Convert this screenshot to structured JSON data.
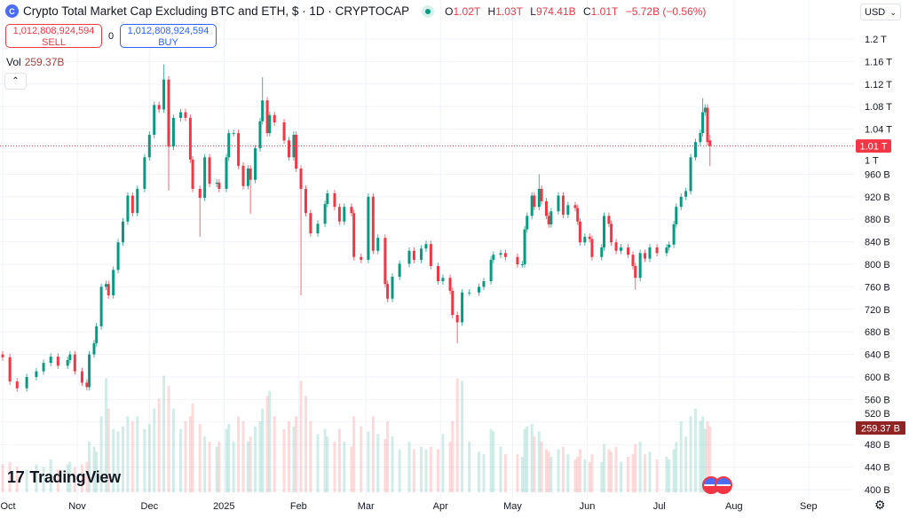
{
  "header": {
    "logo_letter": "C",
    "title": "Crypto Total Market Cap Excluding BTC and ETH, $ · 1D · CRYPTOCAP",
    "ohlc": {
      "o_label": "O",
      "o": "1.02T",
      "h_label": "H",
      "h": "1.03T",
      "l_label": "L",
      "l": "974.41B",
      "c_label": "C",
      "c": "1.01T",
      "change": "−5.72B (−0.56%)"
    },
    "status_color": "#089981"
  },
  "trade": {
    "sell_price": "1,012,808,924,594",
    "sell_label": "SELL",
    "spread": "0",
    "buy_price": "1,012,808,924,594",
    "buy_label": "BUY"
  },
  "volume_legend": {
    "label": "Vol",
    "value": "259.37B"
  },
  "collapse_icon": "chevron-up-icon",
  "currency": {
    "selected": "USD"
  },
  "price_tag": "1.01 T",
  "volume_tag": "259.37 B",
  "branding": "TradingView",
  "chart_data": {
    "type": "candlestick",
    "title": "Crypto Total Market Cap Excluding BTC and ETH",
    "ylabel": "",
    "xlabel": "",
    "ylim": [
      400,
      1200
    ],
    "y_unit": "B USD",
    "grid": true,
    "colors": {
      "up": "#089981",
      "down": "#f23645",
      "last_price": "#f23645",
      "volume_tag": "#8f2424"
    },
    "y_ticks": [
      "1.2 T",
      "1.16 T",
      "1.12 T",
      "1.08 T",
      "1.04 T",
      "1 T",
      "960 B",
      "920 B",
      "880 B",
      "840 B",
      "800 B",
      "760 B",
      "720 B",
      "680 B",
      "640 B",
      "600 B",
      "560 B",
      "520 B",
      "480 B",
      "440 B",
      "400 B"
    ],
    "y_tick_values": [
      1200,
      1160,
      1120,
      1080,
      1040,
      1000,
      960,
      920,
      880,
      840,
      800,
      760,
      720,
      680,
      640,
      600,
      560,
      520,
      480,
      440,
      400
    ],
    "x_ticks": [
      {
        "label": "Oct",
        "date": "2024-10-01"
      },
      {
        "label": "Nov",
        "date": "2024-11-01"
      },
      {
        "label": "Dec",
        "date": "2024-12-01"
      },
      {
        "label": "2025",
        "date": "2025-01-01"
      },
      {
        "label": "Feb",
        "date": "2025-02-01"
      },
      {
        "label": "Mar",
        "date": "2025-03-01"
      },
      {
        "label": "Apr",
        "date": "2025-04-01"
      },
      {
        "label": "May",
        "date": "2025-05-01"
      },
      {
        "label": "Jun",
        "date": "2025-06-01"
      },
      {
        "label": "Jul",
        "date": "2025-07-01"
      },
      {
        "label": "Aug",
        "date": "2025-08-01"
      },
      {
        "label": "Sep",
        "date": "2025-09-01"
      }
    ],
    "last_price": 1010,
    "last_volume": 259.37,
    "first_open": 640,
    "candle_fields": [
      "date",
      "close",
      "volume",
      "high",
      "low"
    ],
    "candles": [
      [
        "2024-10-01",
        635,
        110
      ],
      [
        "2024-10-04",
        592,
        120
      ],
      [
        "2024-10-07",
        580,
        100
      ],
      [
        "2024-10-11",
        600,
        90
      ],
      [
        "2024-10-15",
        610,
        110
      ],
      [
        "2024-10-18",
        625,
        100
      ],
      [
        "2024-10-21",
        636,
        130
      ],
      [
        "2024-10-24",
        620,
        90
      ],
      [
        "2024-10-28",
        630,
        110
      ],
      [
        "2024-10-29",
        640,
        120
      ],
      [
        "2024-10-31",
        610,
        100
      ],
      [
        "2024-11-03",
        590,
        110
      ],
      [
        "2024-11-05",
        582,
        120
      ],
      [
        "2024-11-06",
        640,
        200
      ],
      [
        "2024-11-08",
        660,
        180
      ],
      [
        "2024-11-09",
        690,
        160
      ],
      [
        "2024-11-11",
        760,
        300
      ],
      [
        "2024-11-13",
        765,
        450
      ],
      [
        "2024-11-14",
        745,
        330
      ],
      [
        "2024-11-16",
        790,
        250
      ],
      [
        "2024-11-18",
        839,
        240
      ],
      [
        "2024-11-20",
        876,
        260
      ],
      [
        "2024-11-22",
        922,
        300
      ],
      [
        "2024-11-24",
        891,
        280
      ],
      [
        "2024-11-26",
        934,
        300
      ],
      [
        "2024-11-29",
        990,
        250
      ],
      [
        "2024-12-01",
        1030,
        270
      ],
      [
        "2024-12-03",
        1083,
        330
      ],
      [
        "2024-12-05",
        1075,
        370
      ],
      [
        "2024-12-07",
        1128,
        460,
        1155,
        null
      ],
      [
        "2024-12-09",
        1009,
        420,
        null,
        931
      ],
      [
        "2024-12-11",
        1060,
        330
      ],
      [
        "2024-12-14",
        1070,
        250
      ],
      [
        "2024-12-16",
        1060,
        280
      ],
      [
        "2024-12-18",
        986,
        300
      ],
      [
        "2024-12-19",
        934,
        350
      ],
      [
        "2024-12-22",
        918,
        270,
        null,
        849
      ],
      [
        "2024-12-24",
        990,
        220
      ],
      [
        "2024-12-26",
        943,
        200
      ],
      [
        "2024-12-29",
        945,
        180
      ],
      [
        "2024-12-30",
        934,
        200
      ],
      [
        "2025-01-02",
        990,
        250
      ],
      [
        "2025-01-03",
        1033,
        270
      ],
      [
        "2025-01-05",
        1033,
        200
      ],
      [
        "2025-01-07",
        975,
        300
      ],
      [
        "2025-01-09",
        939,
        280
      ],
      [
        "2025-01-11",
        970,
        200
      ],
      [
        "2025-01-12",
        950,
        220,
        null,
        890
      ],
      [
        "2025-01-14",
        1006,
        260
      ],
      [
        "2025-01-16",
        1054,
        280
      ],
      [
        "2025-01-17",
        1091,
        330,
        1132,
        null
      ],
      [
        "2025-01-19",
        1033,
        380
      ],
      [
        "2025-01-20",
        1065,
        400
      ],
      [
        "2025-01-22",
        1052,
        300
      ],
      [
        "2025-01-26",
        1020,
        250
      ],
      [
        "2025-01-28",
        990,
        280
      ],
      [
        "2025-01-30",
        1030,
        260
      ],
      [
        "2025-01-31",
        970,
        300
      ],
      [
        "2025-02-02",
        934,
        440,
        null,
        745
      ],
      [
        "2025-02-04",
        891,
        380
      ],
      [
        "2025-02-06",
        855,
        280
      ],
      [
        "2025-02-09",
        872,
        230
      ],
      [
        "2025-02-12",
        907,
        250
      ],
      [
        "2025-02-13",
        926,
        220
      ],
      [
        "2025-02-16",
        902,
        200
      ],
      [
        "2025-02-18",
        876,
        250
      ],
      [
        "2025-02-20",
        902,
        200
      ],
      [
        "2025-02-23",
        891,
        180
      ],
      [
        "2025-02-24",
        813,
        300
      ],
      [
        "2025-02-27",
        808,
        260
      ],
      [
        "2025-03-02",
        920,
        240
      ],
      [
        "2025-03-04",
        824,
        300
      ],
      [
        "2025-03-06",
        847,
        230
      ],
      [
        "2025-03-09",
        765,
        210
      ],
      [
        "2025-03-10",
        739,
        280
      ],
      [
        "2025-03-12",
        778,
        220
      ],
      [
        "2025-03-15",
        801,
        170
      ],
      [
        "2025-03-19",
        824,
        200
      ],
      [
        "2025-03-21",
        808,
        170
      ],
      [
        "2025-03-24",
        828,
        180
      ],
      [
        "2025-03-26",
        836,
        170
      ],
      [
        "2025-03-28",
        797,
        180
      ],
      [
        "2025-03-31",
        770,
        170
      ],
      [
        "2025-04-02",
        776,
        230
      ],
      [
        "2025-04-05",
        753,
        200
      ],
      [
        "2025-04-06",
        710,
        280
      ],
      [
        "2025-04-08",
        697,
        450,
        null,
        660
      ],
      [
        "2025-04-10",
        750,
        440
      ],
      [
        "2025-04-13",
        750,
        200
      ],
      [
        "2025-04-17",
        760,
        160
      ],
      [
        "2025-04-19",
        770,
        150
      ],
      [
        "2025-04-22",
        808,
        250
      ],
      [
        "2025-04-23",
        817,
        240
      ],
      [
        "2025-04-26",
        820,
        180
      ],
      [
        "2025-04-28",
        813,
        150
      ],
      [
        "2025-05-03",
        800,
        150
      ],
      [
        "2025-05-05",
        800,
        140
      ],
      [
        "2025-05-06",
        862,
        250
      ],
      [
        "2025-05-07",
        886,
        260
      ],
      [
        "2025-05-09",
        922,
        270
      ],
      [
        "2025-05-10",
        902,
        220
      ],
      [
        "2025-05-12",
        934,
        240,
        960,
        null
      ],
      [
        "2025-05-13",
        912,
        200
      ],
      [
        "2025-05-15",
        886,
        170
      ],
      [
        "2025-05-16",
        871,
        160
      ],
      [
        "2025-05-17",
        894,
        140
      ],
      [
        "2025-05-20",
        922,
        170
      ],
      [
        "2025-05-22",
        888,
        180
      ],
      [
        "2025-05-24",
        905,
        150
      ],
      [
        "2025-05-27",
        900,
        130
      ],
      [
        "2025-05-28",
        876,
        140
      ],
      [
        "2025-05-29",
        839,
        170
      ],
      [
        "2025-05-31",
        849,
        130
      ],
      [
        "2025-06-02",
        845,
        120
      ],
      [
        "2025-06-03",
        813,
        150
      ],
      [
        "2025-06-07",
        830,
        120
      ],
      [
        "2025-06-08",
        886,
        190
      ],
      [
        "2025-06-10",
        872,
        170
      ],
      [
        "2025-06-11",
        839,
        160
      ],
      [
        "2025-06-13",
        824,
        180
      ],
      [
        "2025-06-15",
        830,
        120
      ],
      [
        "2025-06-18",
        817,
        140
      ],
      [
        "2025-06-20",
        797,
        150
      ],
      [
        "2025-06-21",
        776,
        190,
        null,
        755
      ],
      [
        "2025-06-23",
        820,
        200
      ],
      [
        "2025-06-25",
        810,
        150
      ],
      [
        "2025-06-27",
        830,
        160
      ],
      [
        "2025-06-30",
        820,
        130
      ],
      [
        "2025-07-04",
        830,
        140
      ],
      [
        "2025-07-05",
        835,
        130
      ],
      [
        "2025-07-07",
        871,
        170
      ],
      [
        "2025-07-08",
        902,
        200
      ],
      [
        "2025-07-10",
        920,
        280
      ],
      [
        "2025-07-12",
        930,
        220
      ],
      [
        "2025-07-14",
        990,
        300
      ],
      [
        "2025-07-16",
        1017,
        330
      ],
      [
        "2025-07-18",
        1033,
        280
      ],
      [
        "2025-07-19",
        1070,
        300,
        1095,
        null
      ],
      [
        "2025-07-20",
        1078,
        250
      ],
      [
        "2025-07-21",
        1017,
        280
      ],
      [
        "2025-07-22",
        1010,
        259.37,
        1030,
        974.41
      ]
    ]
  }
}
